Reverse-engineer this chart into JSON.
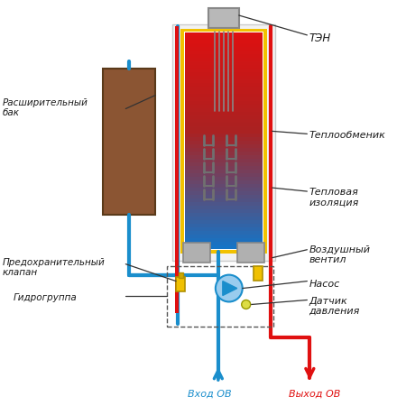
{
  "bg": "#ffffff",
  "tank_fill": "#8B5533",
  "tank_edge": "#5a3a1a",
  "red": "#e01010",
  "blue": "#1a8ecc",
  "yellow": "#f0c000",
  "gray1": "#aaaaaa",
  "gray2": "#bbbbbb",
  "gray3": "#999999",
  "label_c": "#1a1a1a",
  "labels": {
    "ten": "ТЭН",
    "heat_exchanger": "Теплообменик",
    "insulation": "Тепловая\nизоляция",
    "air_valve": "Воздушный\nвентил",
    "pump": "Насос",
    "pressure_sensor": "Датчик\nдавления",
    "safety_valve": "Предохранительный\nклапан",
    "hydro_group": "Гидрогруппа",
    "expansion_tank": "Расширительный\nбак",
    "inlet": "Вход ОВ",
    "outlet": "Выход ОВ"
  }
}
